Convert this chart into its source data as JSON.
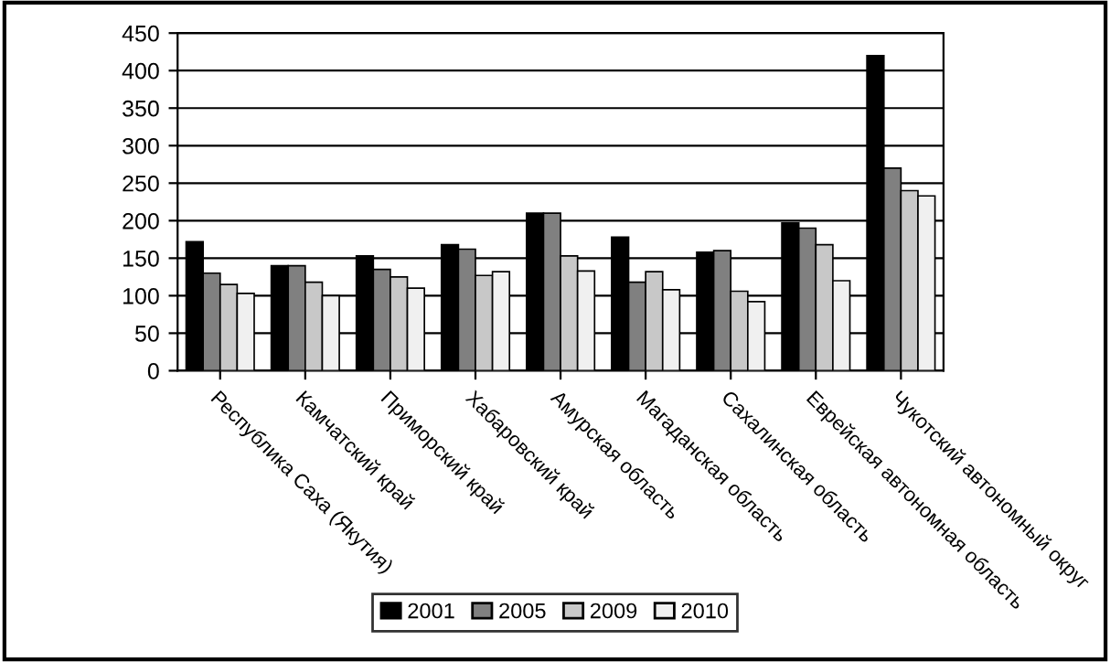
{
  "chart_data": {
    "type": "bar",
    "categories": [
      "Республика Саха (Якутия)",
      "Камчатский край",
      "Приморский край",
      "Хабаровский край",
      "Амурская область",
      "Магаданская область",
      "Сахалинская область",
      "Еврейская автономная область",
      "Чукотский автономный округ"
    ],
    "series": [
      {
        "name": "2001",
        "color": "#000000",
        "values": [
          172,
          140,
          153,
          168,
          210,
          178,
          158,
          197,
          420
        ]
      },
      {
        "name": "2005",
        "color": "#808080",
        "values": [
          130,
          140,
          135,
          162,
          210,
          118,
          160,
          190,
          270
        ]
      },
      {
        "name": "2009",
        "color": "#c8c8c8",
        "values": [
          115,
          118,
          125,
          127,
          153,
          132,
          106,
          168,
          240
        ]
      },
      {
        "name": "2010",
        "color": "#f0f0f0",
        "values": [
          103,
          100,
          110,
          132,
          133,
          108,
          92,
          120,
          233
        ]
      }
    ],
    "ylim": [
      0,
      450
    ],
    "yticks": [
      0,
      50,
      100,
      150,
      200,
      250,
      300,
      350,
      400,
      450
    ],
    "grid": "y",
    "legend": "bottom"
  }
}
